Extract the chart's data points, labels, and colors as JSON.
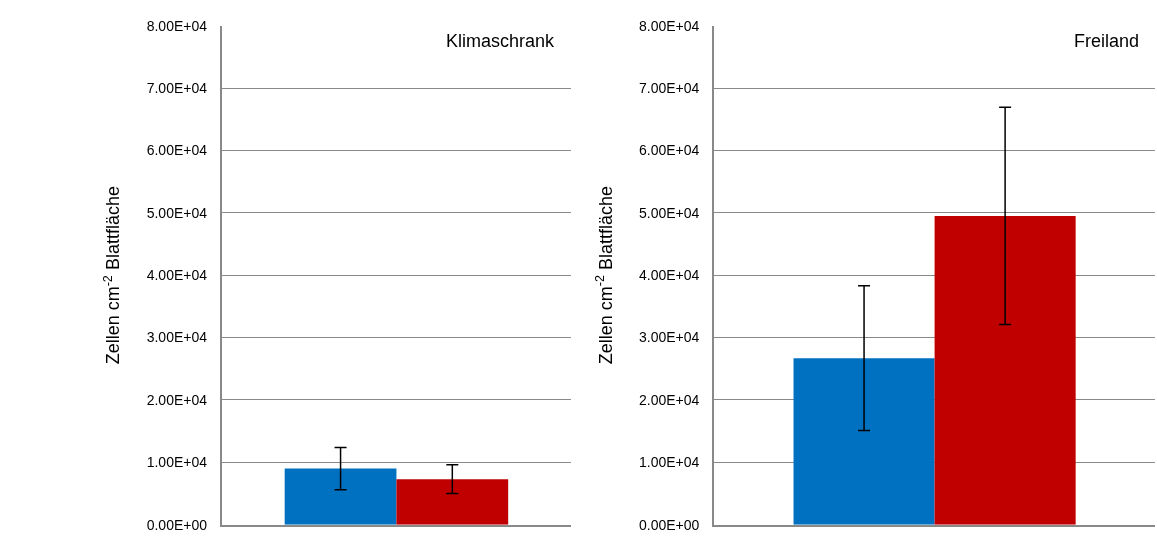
{
  "chart_data": [
    {
      "type": "bar",
      "ylabel": "Zellen cm$^{-2}$ Blattfläche",
      "annotations": [
        "Klimaschrank"
      ],
      "categories": [
        null
      ],
      "grid": "y",
      "ylim": [
        0,
        80000
      ],
      "yticks": [
        {
          "value": 0,
          "label": "0.00E+00"
        },
        {
          "value": 10000,
          "label": "1.00E+04"
        },
        {
          "value": 20000,
          "label": "2.00E+04"
        },
        {
          "value": 30000,
          "label": "3.00E+04"
        },
        {
          "value": 40000,
          "label": "4.00E+04"
        },
        {
          "value": 50000,
          "label": "5.00E+04"
        },
        {
          "value": 60000,
          "label": "6.00E+04"
        },
        {
          "value": 70000,
          "label": "7.00E+04"
        },
        {
          "value": 80000,
          "label": "8.00E+04"
        }
      ],
      "series": [
        {
          "color": "#0070c0",
          "values": [
            9000
          ],
          "errors": [
            3400
          ]
        },
        {
          "color": "#c00000",
          "values": [
            7300
          ],
          "errors": [
            2300
          ]
        }
      ]
    },
    {
      "type": "bar",
      "ylabel": "Zellen cm$^{-2}$ Blattfläche",
      "annotations": [
        "Freiland"
      ],
      "categories": [
        null
      ],
      "grid": "y",
      "ylim": [
        0,
        80000
      ],
      "yticks": [
        {
          "value": 0,
          "label": "0.00E+00"
        },
        {
          "value": 10000,
          "label": "1.00E+04"
        },
        {
          "value": 20000,
          "label": "2.00E+04"
        },
        {
          "value": 30000,
          "label": "3.00E+04"
        },
        {
          "value": 40000,
          "label": "4.00E+04"
        },
        {
          "value": 50000,
          "label": "5.00E+04"
        },
        {
          "value": 60000,
          "label": "6.00E+04"
        },
        {
          "value": 70000,
          "label": "7.00E+04"
        },
        {
          "value": 80000,
          "label": "8.00E+04"
        }
      ],
      "series": [
        {
          "color": "#0070c0",
          "values": [
            26700
          ],
          "errors": [
            11600
          ]
        },
        {
          "color": "#c00000",
          "values": [
            49500
          ],
          "errors": [
            17400
          ]
        }
      ]
    }
  ]
}
